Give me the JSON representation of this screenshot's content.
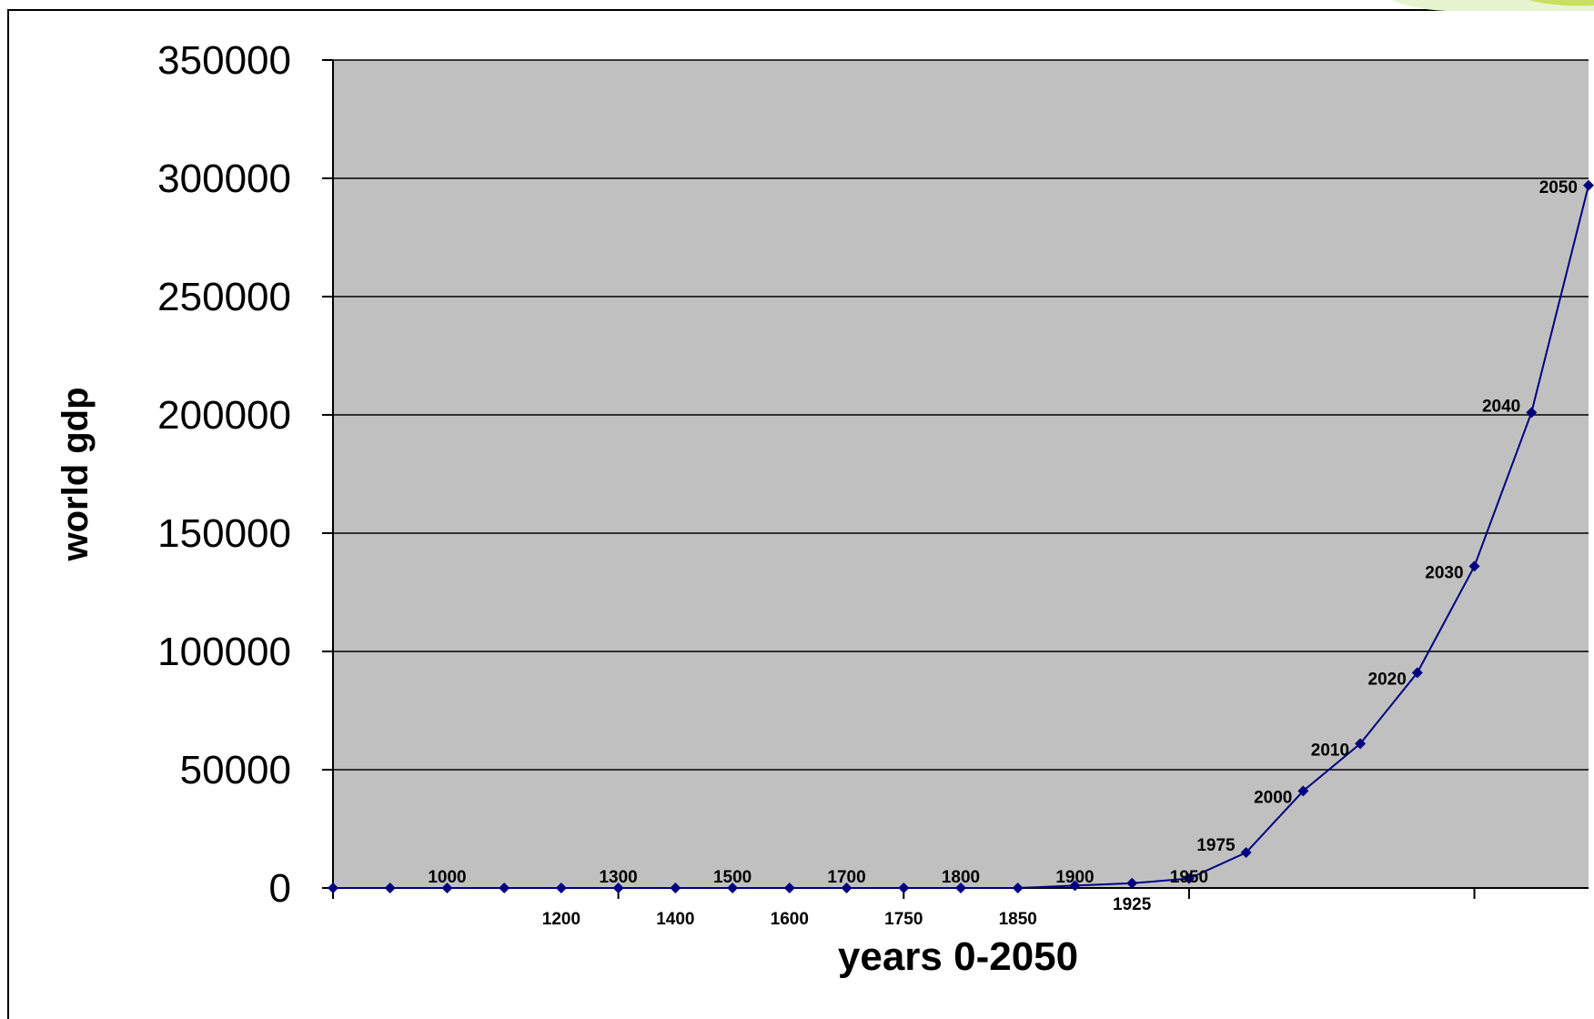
{
  "chart_data": {
    "type": "line",
    "title": "",
    "xlabel": "years 0-2050",
    "ylabel": "world gdp",
    "ylim": [
      0,
      350000
    ],
    "yticks": [
      0,
      50000,
      100000,
      150000,
      200000,
      250000,
      300000,
      350000
    ],
    "grid": "horizontal",
    "legend": "none",
    "series_color": "#000080",
    "plot_background": "#c0c0c0",
    "points": [
      {
        "x": 0,
        "y": 0,
        "label": ""
      },
      {
        "x": 500,
        "y": 0,
        "label": ""
      },
      {
        "x": 1000,
        "y": 0,
        "label": "1000"
      },
      {
        "x": 1100,
        "y": 0,
        "label": ""
      },
      {
        "x": 1200,
        "y": 0,
        "label": "1200"
      },
      {
        "x": 1300,
        "y": 0,
        "label": "1300"
      },
      {
        "x": 1400,
        "y": 0,
        "label": "1400"
      },
      {
        "x": 1500,
        "y": 0,
        "label": "1500"
      },
      {
        "x": 1600,
        "y": 0,
        "label": "1600"
      },
      {
        "x": 1700,
        "y": 0,
        "label": "1700"
      },
      {
        "x": 1750,
        "y": 0,
        "label": "1750"
      },
      {
        "x": 1800,
        "y": 0,
        "label": "1800"
      },
      {
        "x": 1850,
        "y": 0,
        "label": "1850"
      },
      {
        "x": 1900,
        "y": 1000,
        "label": "1900"
      },
      {
        "x": 1925,
        "y": 2000,
        "label": "1925"
      },
      {
        "x": 1950,
        "y": 4000,
        "label": "1950"
      },
      {
        "x": 1975,
        "y": 15000,
        "label": "1975"
      },
      {
        "x": 2000,
        "y": 41000,
        "label": "2000"
      },
      {
        "x": 2010,
        "y": 61000,
        "label": "2010"
      },
      {
        "x": 2020,
        "y": 91000,
        "label": "2020"
      },
      {
        "x": 2030,
        "y": 136000,
        "label": "2030"
      },
      {
        "x": 2040,
        "y": 201000,
        "label": "2040"
      },
      {
        "x": 2050,
        "y": 297000,
        "label": "2050"
      }
    ]
  }
}
